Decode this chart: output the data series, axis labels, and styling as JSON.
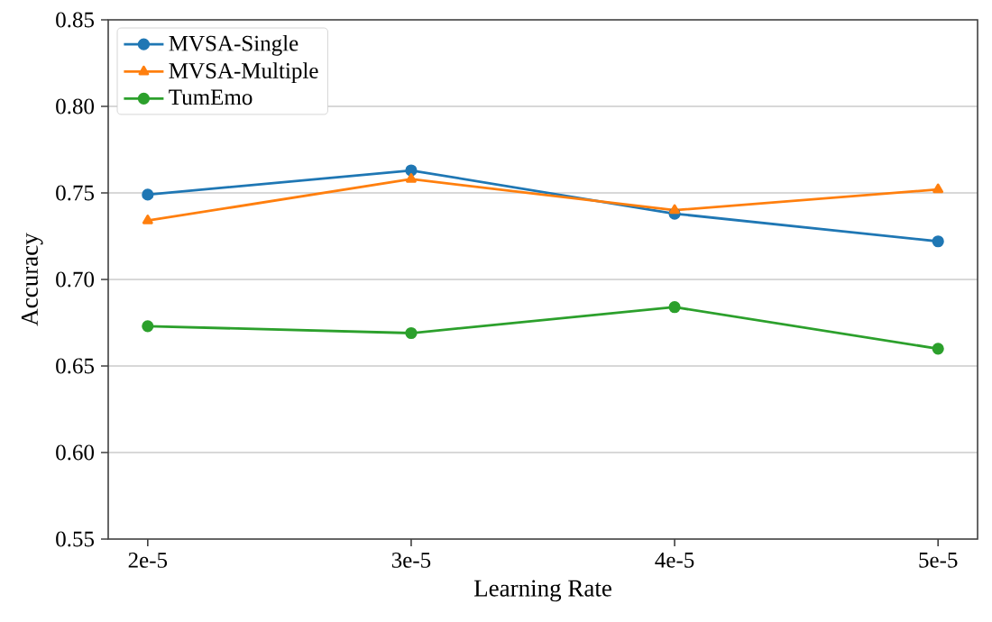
{
  "chart_data": {
    "type": "line",
    "xlabel": "Learning Rate",
    "ylabel": "Accuracy",
    "categories": [
      "2e-5",
      "3e-5",
      "4e-5",
      "5e-5"
    ],
    "series": [
      {
        "name": "MVSA-Single",
        "color": "#1f77b4",
        "marker": "circle",
        "values": [
          0.749,
          0.763,
          0.738,
          0.722
        ]
      },
      {
        "name": "MVSA-Multiple",
        "color": "#ff7f0e",
        "marker": "triangle",
        "values": [
          0.734,
          0.758,
          0.74,
          0.752
        ]
      },
      {
        "name": "TumEmo",
        "color": "#2ca02c",
        "marker": "circle",
        "values": [
          0.673,
          0.669,
          0.684,
          0.66
        ]
      }
    ],
    "ylim": [
      0.55,
      0.85
    ],
    "yticks": [
      {
        "value": 0.55,
        "label": "0.55"
      },
      {
        "value": 0.6,
        "label": "0.60"
      },
      {
        "value": 0.65,
        "label": "0.65"
      },
      {
        "value": 0.7,
        "label": "0.70"
      },
      {
        "value": 0.75,
        "label": "0.75"
      },
      {
        "value": 0.8,
        "label": "0.80"
      },
      {
        "value": 0.85,
        "label": "0.85"
      }
    ],
    "grid": "y",
    "legend": "top left",
    "line_style": "solid"
  }
}
